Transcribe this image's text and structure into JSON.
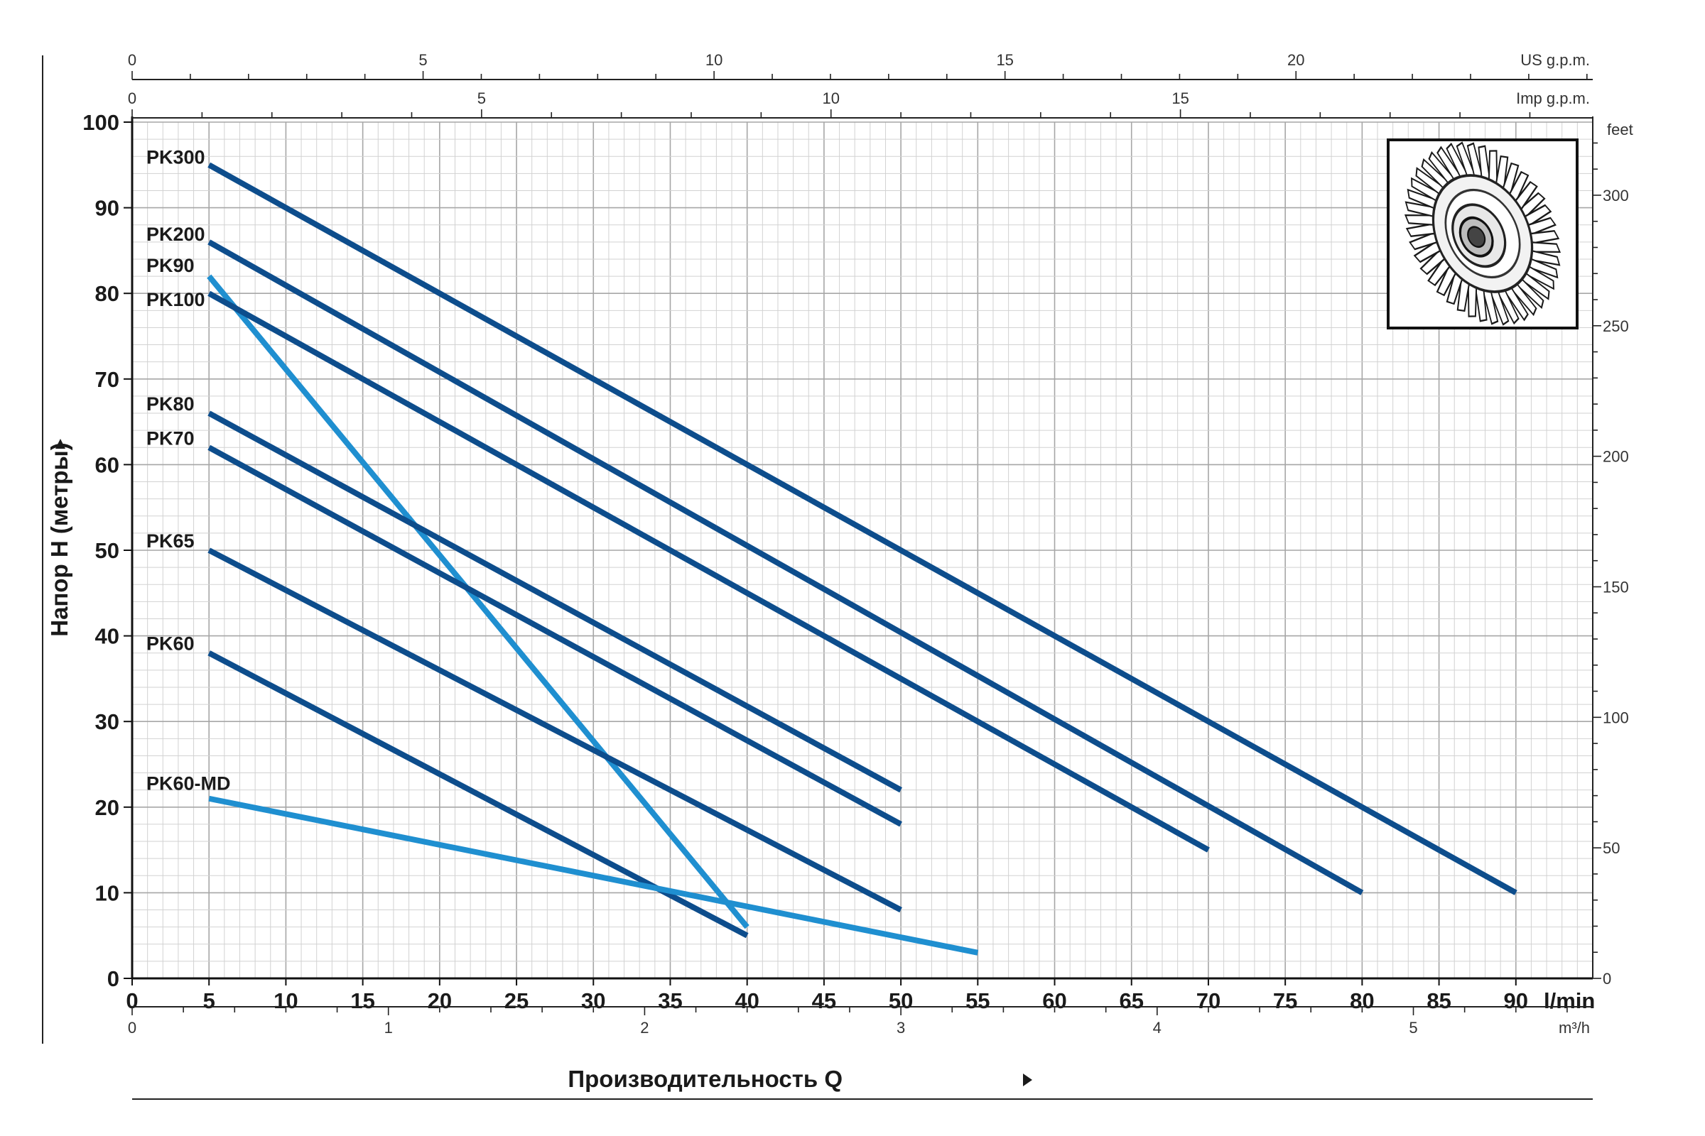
{
  "chart_data": {
    "type": "line",
    "xlabel": "Производительность Q",
    "ylabel": "Напор H (метры)",
    "x_unit": "l/min",
    "xlim": [
      0,
      95
    ],
    "ylim": [
      0,
      100
    ],
    "x_ticks": [
      0,
      5,
      10,
      15,
      20,
      25,
      30,
      35,
      40,
      45,
      50,
      55,
      60,
      65,
      70,
      75,
      80,
      85,
      90
    ],
    "y_ticks": [
      0,
      10,
      20,
      30,
      40,
      50,
      60,
      70,
      80,
      90,
      100
    ],
    "grid": true,
    "secondary_axes": {
      "us_gpm": {
        "unit": "US g.p.m.",
        "range": [
          0,
          25.1
        ],
        "ticks": [
          0,
          5,
          10,
          15,
          20
        ]
      },
      "imp_gpm": {
        "unit": "Imp g.p.m.",
        "range": [
          0,
          20.9
        ],
        "ticks": [
          0,
          5,
          10,
          15
        ]
      },
      "m3h": {
        "unit": "m³/h",
        "range": [
          0,
          5.7
        ],
        "ticks": [
          0,
          1,
          2,
          3,
          4,
          5
        ]
      },
      "feet": {
        "unit": "feet",
        "range": [
          0,
          328
        ],
        "ticks": [
          0,
          50,
          100,
          150,
          200,
          250,
          300
        ]
      }
    },
    "series": [
      {
        "name": "PK300",
        "color": "#0d4d8c",
        "x": [
          5,
          90
        ],
        "y": [
          95,
          10
        ]
      },
      {
        "name": "PK200",
        "color": "#0d4d8c",
        "x": [
          5,
          80
        ],
        "y": [
          86,
          10
        ]
      },
      {
        "name": "PK90",
        "color": "#1f8fd0",
        "x": [
          5,
          40
        ],
        "y": [
          82,
          6
        ]
      },
      {
        "name": "PK100",
        "color": "#0d4d8c",
        "x": [
          5,
          70
        ],
        "y": [
          80,
          15
        ]
      },
      {
        "name": "PK80",
        "color": "#0d4d8c",
        "x": [
          5,
          50
        ],
        "y": [
          66,
          22
        ]
      },
      {
        "name": "PK70",
        "color": "#0d4d8c",
        "x": [
          5,
          50
        ],
        "y": [
          62,
          18
        ]
      },
      {
        "name": "PK65",
        "color": "#0d4d8c",
        "x": [
          5,
          50
        ],
        "y": [
          50,
          8
        ]
      },
      {
        "name": "PK60",
        "color": "#0d4d8c",
        "x": [
          5,
          40
        ],
        "y": [
          38,
          5
        ]
      },
      {
        "name": "PK60-MD",
        "color": "#1f8fd0",
        "x": [
          5,
          55
        ],
        "y": [
          21,
          3
        ]
      }
    ]
  },
  "inset": {
    "icon": "impeller-icon"
  }
}
